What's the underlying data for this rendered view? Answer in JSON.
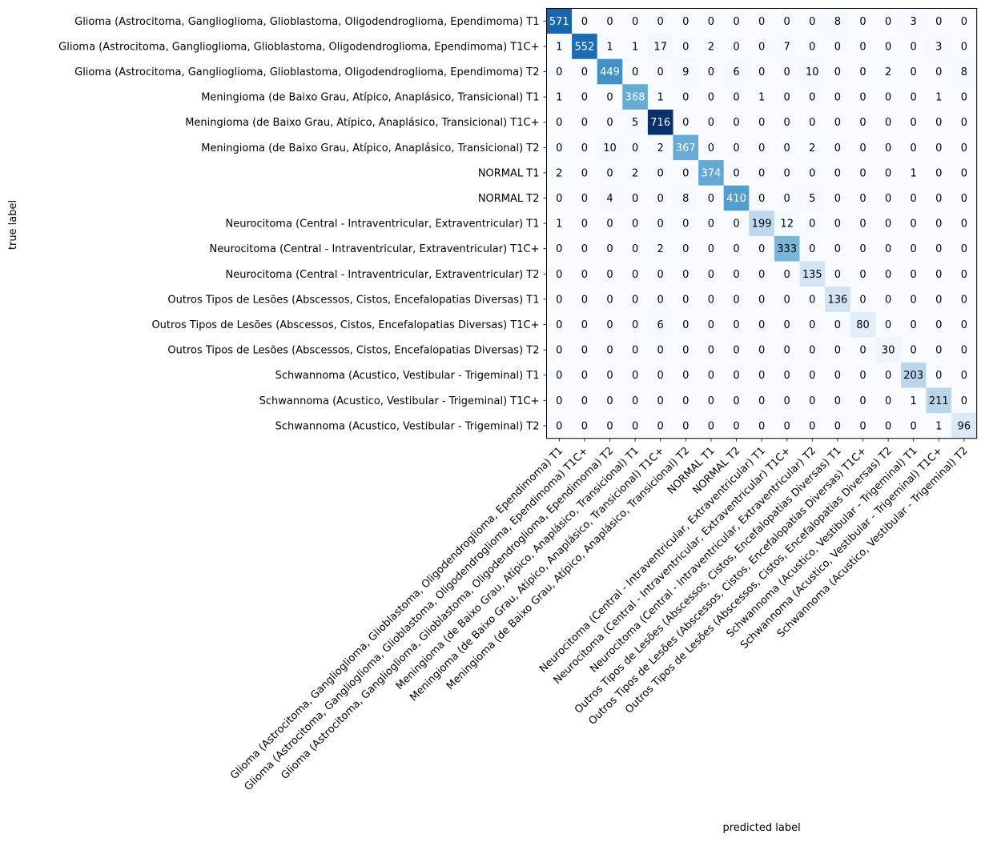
{
  "chart_data": {
    "type": "heatmap",
    "title": "",
    "xlabel": "predicted label",
    "ylabel": "true label",
    "colormap": "Blues",
    "colorscale_range": [
      0,
      716
    ],
    "grid": false,
    "legend": "none",
    "row_labels": [
      "Glioma (Astrocitoma, Ganglioglioma, Glioblastoma, Oligodendroglioma, Ependimoma) T1",
      "Glioma (Astrocitoma, Ganglioglioma, Glioblastoma, Oligodendroglioma, Ependimoma) T1C+",
      "Glioma (Astrocitoma, Ganglioglioma, Glioblastoma, Oligodendroglioma, Ependimoma) T2",
      "Meningioma (de Baixo Grau, Atípico, Anaplásico, Transicional) T1",
      "Meningioma (de Baixo Grau, Atípico, Anaplásico, Transicional) T1C+",
      "Meningioma (de Baixo Grau, Atípico, Anaplásico, Transicional) T2",
      "NORMAL T1",
      "NORMAL T2",
      "Neurocitoma (Central - Intraventricular, Extraventricular) T1",
      "Neurocitoma (Central - Intraventricular, Extraventricular) T1C+",
      "Neurocitoma (Central - Intraventricular, Extraventricular) T2",
      "Outros Tipos de Lesões (Abscessos, Cistos, Encefalopatias Diversas) T1",
      "Outros Tipos de Lesões (Abscessos, Cistos, Encefalopatias Diversas) T1C+",
      "Outros Tipos de Lesões (Abscessos, Cistos, Encefalopatias Diversas) T2",
      "Schwannoma (Acustico, Vestibular - Trigeminal) T1",
      "Schwannoma (Acustico, Vestibular - Trigeminal) T1C+",
      "Schwannoma (Acustico, Vestibular - Trigeminal) T2"
    ],
    "col_labels": [
      "Glioma (Astrocitoma, Ganglioglioma, Glioblastoma, Oligodendroglioma, Ependimoma) T1",
      "Glioma (Astrocitoma, Ganglioglioma, Glioblastoma, Oligodendroglioma, Ependimoma) T1C+",
      "Glioma (Astrocitoma, Ganglioglioma, Glioblastoma, Oligodendroglioma, Ependimoma) T2",
      "Meningioma (de Baixo Grau, Atípico, Anaplásico, Transicional) T1",
      "Meningioma (de Baixo Grau, Atípico, Anaplásico, Transicional) T1C+",
      "Meningioma (de Baixo Grau, Atípico, Anaplásico, Transicional) T2",
      "NORMAL T1",
      "NORMAL T2",
      "Neurocitoma (Central - Intraventricular, Extraventricular) T1",
      "Neurocitoma (Central - Intraventricular, Extraventricular) T1C+",
      "Neurocitoma (Central - Intraventricular, Extraventricular) T2",
      "Outros Tipos de Lesões (Abscessos, Cistos, Encefalopatias Diversas) T1",
      "Outros Tipos de Lesões (Abscessos, Cistos, Encefalopatias Diversas) T1C+",
      "Outros Tipos de Lesões (Abscessos, Cistos, Encefalopatias Diversas) T2",
      "Schwannoma (Acustico, Vestibular - Trigeminal) T1",
      "Schwannoma (Acustico, Vestibular - Trigeminal) T1C+",
      "Schwannoma (Acustico, Vestibular - Trigeminal) T2"
    ],
    "matrix": [
      [
        571,
        0,
        0,
        0,
        0,
        0,
        0,
        0,
        0,
        0,
        0,
        8,
        0,
        0,
        3,
        0,
        0
      ],
      [
        1,
        552,
        1,
        1,
        17,
        0,
        2,
        0,
        0,
        7,
        0,
        0,
        0,
        0,
        0,
        3,
        0
      ],
      [
        0,
        0,
        449,
        0,
        0,
        9,
        0,
        6,
        0,
        0,
        10,
        0,
        0,
        2,
        0,
        0,
        8
      ],
      [
        1,
        0,
        0,
        368,
        1,
        0,
        0,
        0,
        1,
        0,
        0,
        0,
        0,
        0,
        0,
        1,
        0
      ],
      [
        0,
        0,
        0,
        5,
        716,
        0,
        0,
        0,
        0,
        0,
        0,
        0,
        0,
        0,
        0,
        0,
        0
      ],
      [
        0,
        0,
        10,
        0,
        2,
        367,
        0,
        0,
        0,
        0,
        2,
        0,
        0,
        0,
        0,
        0,
        0
      ],
      [
        2,
        0,
        0,
        2,
        0,
        0,
        374,
        0,
        0,
        0,
        0,
        0,
        0,
        0,
        1,
        0,
        0
      ],
      [
        0,
        0,
        4,
        0,
        0,
        8,
        0,
        410,
        0,
        0,
        5,
        0,
        0,
        0,
        0,
        0,
        0
      ],
      [
        1,
        0,
        0,
        0,
        0,
        0,
        0,
        0,
        199,
        12,
        0,
        0,
        0,
        0,
        0,
        0,
        0
      ],
      [
        0,
        0,
        0,
        0,
        2,
        0,
        0,
        0,
        0,
        333,
        0,
        0,
        0,
        0,
        0,
        0,
        0
      ],
      [
        0,
        0,
        0,
        0,
        0,
        0,
        0,
        0,
        0,
        0,
        135,
        0,
        0,
        0,
        0,
        0,
        0
      ],
      [
        0,
        0,
        0,
        0,
        0,
        0,
        0,
        0,
        0,
        0,
        0,
        136,
        0,
        0,
        0,
        0,
        0
      ],
      [
        0,
        0,
        0,
        0,
        6,
        0,
        0,
        0,
        0,
        0,
        0,
        0,
        80,
        0,
        0,
        0,
        0
      ],
      [
        0,
        0,
        0,
        0,
        0,
        0,
        0,
        0,
        0,
        0,
        0,
        0,
        0,
        30,
        0,
        0,
        0
      ],
      [
        0,
        0,
        0,
        0,
        0,
        0,
        0,
        0,
        0,
        0,
        0,
        0,
        0,
        0,
        203,
        0,
        0
      ],
      [
        0,
        0,
        0,
        0,
        0,
        0,
        0,
        0,
        0,
        0,
        0,
        0,
        0,
        0,
        1,
        211,
        0
      ],
      [
        0,
        0,
        0,
        0,
        0,
        0,
        0,
        0,
        0,
        0,
        0,
        0,
        0,
        0,
        0,
        1,
        96
      ]
    ]
  }
}
